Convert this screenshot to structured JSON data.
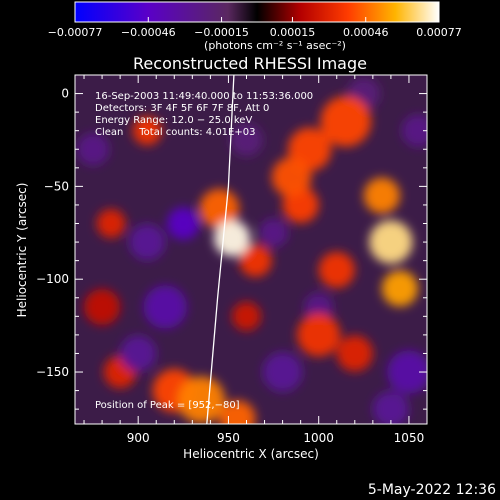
{
  "chart_data": {
    "type": "heatmap",
    "title": "Reconstructed RHESSI Image",
    "xlabel": "Heliocentric X (arcsec)",
    "ylabel": "Heliocentric Y (arcsec)",
    "xlim": [
      865,
      1060
    ],
    "ylim": [
      -178,
      10
    ],
    "x_ticks": [
      900,
      950,
      1000,
      1050
    ],
    "x_tick_labels": [
      "900",
      "950",
      "1000",
      "1050"
    ],
    "y_ticks": [
      0,
      -50,
      -100,
      -150
    ],
    "y_tick_labels": [
      "0",
      "−50",
      "−100",
      "−150"
    ],
    "colorbar": {
      "range": [
        -0.00077,
        0.00077
      ],
      "ticks": [
        -0.00077,
        -0.00046,
        -0.00015,
        0.00015,
        0.00046,
        0.00077
      ],
      "tick_labels": [
        "−0.00077",
        "−0.00046",
        "−0.00015",
        "0.00015",
        "0.00046",
        "0.00077"
      ],
      "units_label": "(photons cm⁻² s⁻¹ asec⁻²)"
    },
    "annotations": [
      "16-Sep-2003 11:49:40.000 to 11:53:36.000",
      "Detectors: 3F 4F 5F 6F 7F 8F, Att 0",
      "Energy Range: 12.0 − 25.0 keV",
      "Clean     Total counts: 4.01E+03"
    ],
    "peak_label": "Position of Peak = [952,−80]",
    "peak": [
      952,
      -80
    ],
    "limb": [
      [
        953,
        10
      ],
      [
        950,
        -50
      ],
      [
        944,
        -110
      ],
      [
        938,
        -178
      ]
    ],
    "blobs": [
      {
        "x": 952,
        "y": -78,
        "r": 10,
        "v": 0.00075
      },
      {
        "x": 945,
        "y": -62,
        "r": 11,
        "v": 0.00045
      },
      {
        "x": 965,
        "y": -90,
        "r": 9,
        "v": 0.00035
      },
      {
        "x": 1035,
        "y": -55,
        "r": 10,
        "v": 0.0005
      },
      {
        "x": 1040,
        "y": -80,
        "r": 12,
        "v": 0.00068
      },
      {
        "x": 1045,
        "y": -105,
        "r": 10,
        "v": 0.00055
      },
      {
        "x": 1015,
        "y": -15,
        "r": 14,
        "v": 0.0004
      },
      {
        "x": 995,
        "y": -30,
        "r": 12,
        "v": 0.0004
      },
      {
        "x": 985,
        "y": -45,
        "r": 11,
        "v": 0.00042
      },
      {
        "x": 990,
        "y": -60,
        "r": 10,
        "v": 0.00038
      },
      {
        "x": 1010,
        "y": -95,
        "r": 10,
        "v": 0.00035
      },
      {
        "x": 1000,
        "y": -130,
        "r": 12,
        "v": 0.00035
      },
      {
        "x": 1020,
        "y": -140,
        "r": 10,
        "v": 0.0003
      },
      {
        "x": 935,
        "y": -165,
        "r": 13,
        "v": 0.0005
      },
      {
        "x": 920,
        "y": -160,
        "r": 12,
        "v": 0.0004
      },
      {
        "x": 955,
        "y": -175,
        "r": 10,
        "v": 0.00045
      },
      {
        "x": 905,
        "y": -20,
        "r": 8,
        "v": 0.00035
      },
      {
        "x": 885,
        "y": -70,
        "r": 8,
        "v": 0.0003
      },
      {
        "x": 890,
        "y": -150,
        "r": 9,
        "v": 0.0003
      },
      {
        "x": 960,
        "y": -120,
        "r": 8,
        "v": 0.00025
      },
      {
        "x": 880,
        "y": -115,
        "r": 10,
        "v": 0.00022
      },
      {
        "x": 925,
        "y": -70,
        "r": 9,
        "v": -0.00045
      },
      {
        "x": 905,
        "y": -80,
        "r": 10,
        "v": -0.0003
      },
      {
        "x": 915,
        "y": -115,
        "r": 12,
        "v": -0.00035
      },
      {
        "x": 900,
        "y": -140,
        "r": 10,
        "v": -0.0003
      },
      {
        "x": 980,
        "y": -150,
        "r": 11,
        "v": -0.0003
      },
      {
        "x": 1050,
        "y": -150,
        "r": 12,
        "v": -0.00035
      },
      {
        "x": 1040,
        "y": -170,
        "r": 10,
        "v": -0.0003
      },
      {
        "x": 975,
        "y": -75,
        "r": 8,
        "v": -0.00025
      },
      {
        "x": 1025,
        "y": 0,
        "r": 9,
        "v": -0.0002
      },
      {
        "x": 1000,
        "y": -115,
        "r": 8,
        "v": -0.00025
      },
      {
        "x": 875,
        "y": -30,
        "r": 9,
        "v": -0.00025
      },
      {
        "x": 960,
        "y": -25,
        "r": 9,
        "v": -0.0002
      },
      {
        "x": 1055,
        "y": -20,
        "r": 9,
        "v": -0.00025
      }
    ]
  },
  "footer": {
    "date_stamp": "5-May-2022 12:36"
  }
}
